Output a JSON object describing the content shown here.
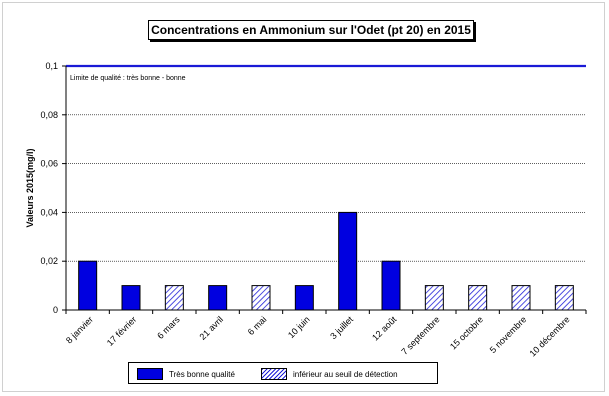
{
  "chart_data": {
    "type": "bar",
    "title": "Concentrations en Ammonium  sur l'Odet (pt 20) en 2015",
    "ylabel": "Valeurs 2015(mg/l)",
    "xlabel": "",
    "ylim": [
      0,
      0.1
    ],
    "yticks": [
      "0",
      "0,02",
      "0,04",
      "0,06",
      "0,08",
      "0,1"
    ],
    "grid": true,
    "threshold": {
      "value": 0.1,
      "label": "Limite de qualité : très bonne - bonne",
      "color": "#1a1ad6"
    },
    "categories": [
      "8 janvier",
      "17 février",
      "6 mars",
      "21 avril",
      "6 mai",
      "10 juin",
      "3 juillet",
      "12 août",
      "7 septembre",
      "15 octobre",
      "5 novembre",
      "10 décembre"
    ],
    "values": [
      0.02,
      0.01,
      0.01,
      0.01,
      0.01,
      0.01,
      0.04,
      0.02,
      0.01,
      0.01,
      0.01,
      0.01
    ],
    "fill": [
      "solid",
      "solid",
      "hatch",
      "solid",
      "hatch",
      "solid",
      "solid",
      "solid",
      "hatch",
      "hatch",
      "hatch",
      "hatch"
    ],
    "legend": {
      "position": "bottom",
      "items": [
        {
          "key": "solid",
          "label": "Très bonne qualité",
          "color": "#0000e0"
        },
        {
          "key": "hatch",
          "label": "inférieur au seuil de détection",
          "color": "#1f1fd8"
        }
      ]
    }
  }
}
